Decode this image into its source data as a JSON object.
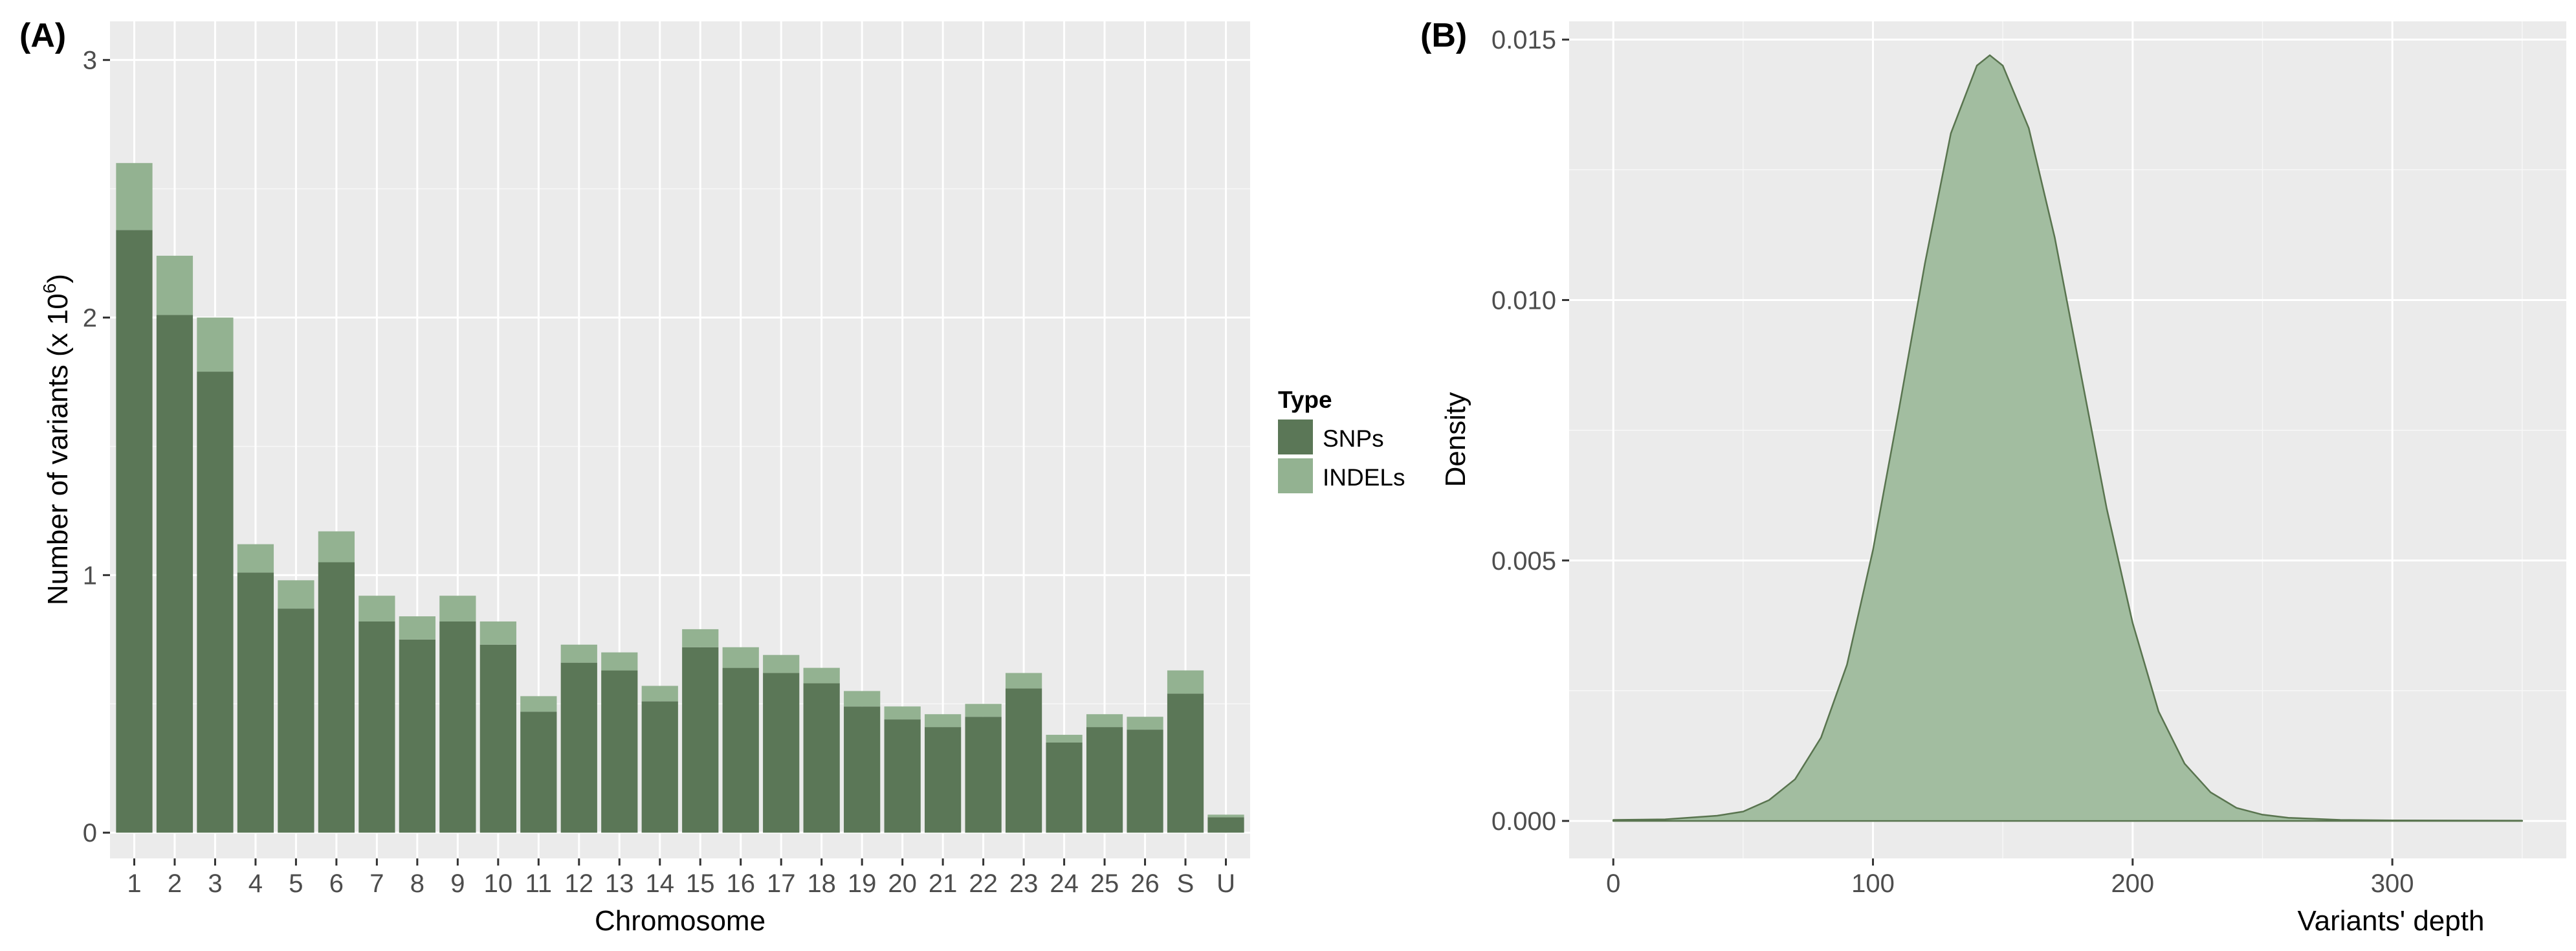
{
  "chart_data": [
    {
      "panel": "(A)",
      "type": "bar",
      "stacked": true,
      "ylabel_main": "Number of variants (x 10",
      "ylabel_sup": "6",
      "ylabel_end": ")",
      "xlabel": "Chromosome",
      "categories": [
        "1",
        "2",
        "3",
        "4",
        "5",
        "6",
        "7",
        "8",
        "9",
        "10",
        "11",
        "12",
        "13",
        "14",
        "15",
        "16",
        "17",
        "18",
        "19",
        "20",
        "21",
        "22",
        "23",
        "24",
        "25",
        "26",
        "S",
        "U"
      ],
      "series": [
        {
          "name": "SNPs",
          "color": "#5b7757",
          "values": [
            2.34,
            2.01,
            1.79,
            1.01,
            0.87,
            1.05,
            0.82,
            0.75,
            0.82,
            0.73,
            0.47,
            0.66,
            0.63,
            0.51,
            0.72,
            0.64,
            0.62,
            0.58,
            0.49,
            0.44,
            0.41,
            0.45,
            0.56,
            0.35,
            0.41,
            0.4,
            0.54,
            0.06
          ]
        },
        {
          "name": "INDELs",
          "color": "#93b291",
          "values": [
            0.26,
            0.23,
            0.21,
            0.11,
            0.11,
            0.12,
            0.1,
            0.09,
            0.1,
            0.09,
            0.06,
            0.07,
            0.07,
            0.06,
            0.07,
            0.08,
            0.07,
            0.06,
            0.06,
            0.05,
            0.05,
            0.05,
            0.06,
            0.03,
            0.05,
            0.05,
            0.09,
            0.01
          ]
        }
      ],
      "ylim": [
        -0.1,
        3.15
      ],
      "yticks": [
        0,
        1,
        2,
        3
      ],
      "grid": true,
      "legend": {
        "title": "Type",
        "placement": "right",
        "items": [
          "SNPs",
          "INDELs"
        ]
      }
    },
    {
      "panel": "(B)",
      "type": "area",
      "subtype": "density",
      "xlabel": "Variants' depth",
      "ylabel": "Density",
      "color": "#a2bda0",
      "stroke": "#59744f",
      "x": [
        0,
        20,
        40,
        50,
        60,
        70,
        80,
        90,
        100,
        110,
        120,
        130,
        140,
        145,
        150,
        160,
        170,
        180,
        190,
        200,
        210,
        220,
        230,
        240,
        250,
        260,
        280,
        300,
        350
      ],
      "y": [
        2e-05,
        3e-05,
        0.0001,
        0.00018,
        0.0004,
        0.0008,
        0.0016,
        0.003,
        0.0052,
        0.0079,
        0.0107,
        0.0132,
        0.0145,
        0.0147,
        0.0145,
        0.0133,
        0.0112,
        0.0086,
        0.006,
        0.0038,
        0.0021,
        0.0011,
        0.00055,
        0.00025,
        0.00012,
        6e-05,
        2e-05,
        1e-05,
        5e-06
      ],
      "xlim": [
        -17,
        367
      ],
      "ylim": [
        -0.00072,
        0.01535
      ],
      "xticks": [
        0,
        100,
        200,
        300
      ],
      "yticks": [
        "0.000",
        "0.005",
        "0.010",
        "0.015"
      ],
      "grid": true
    }
  ]
}
